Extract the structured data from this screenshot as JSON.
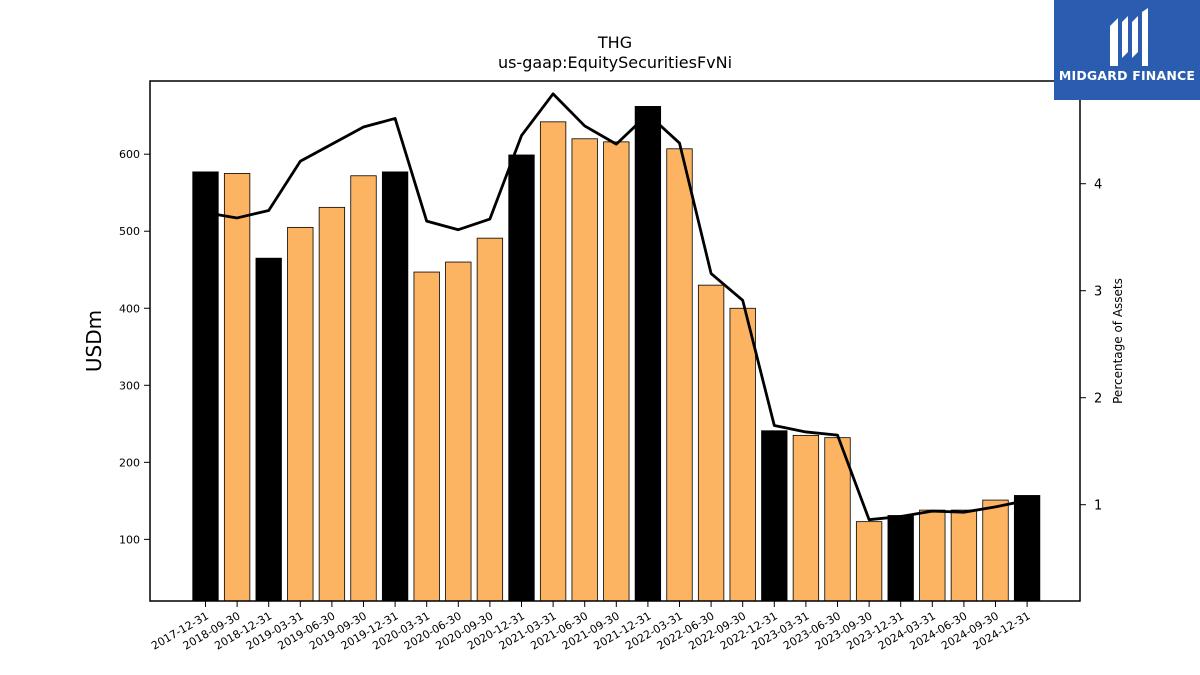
{
  "brand": {
    "name": "MIDGARD FINANCE",
    "bg_color": "#2a5db0"
  },
  "chart_data": {
    "type": "bar",
    "title": "THG",
    "subtitle": "us-gaap:EquitySecuritiesFvNi",
    "ylabel": "USDm",
    "y2label": "Percentage of Assets",
    "ylim": [
      20,
      695
    ],
    "y2lim": [
      0.1,
      4.96
    ],
    "yticks": [
      100,
      200,
      300,
      400,
      500,
      600
    ],
    "y2ticks": [
      1,
      2,
      3,
      4
    ],
    "grid": false,
    "colors": {
      "annual": "#000000",
      "quarterly": "#fdb462",
      "line": "#000000"
    },
    "categories": [
      "2017-12-31",
      "2018-09-30",
      "2018-12-31",
      "2019-03-31",
      "2019-06-30",
      "2019-09-30",
      "2019-12-31",
      "2020-03-31",
      "2020-06-30",
      "2020-09-30",
      "2020-12-31",
      "2021-03-31",
      "2021-06-30",
      "2021-09-30",
      "2021-12-31",
      "2022-03-31",
      "2022-06-30",
      "2022-09-30",
      "2022-12-31",
      "2023-03-31",
      "2023-06-30",
      "2023-09-30",
      "2023-12-31",
      "2024-03-31",
      "2024-06-30",
      "2024-09-30",
      "2024-12-31"
    ],
    "series": [
      {
        "type": "bar",
        "values": [
          577,
          575,
          465,
          505,
          531,
          572,
          577,
          447,
          460,
          491,
          599,
          642,
          620,
          616,
          662,
          607,
          430,
          400,
          241,
          235,
          232,
          123,
          131,
          138,
          138,
          151,
          157
        ],
        "annual": [
          true,
          false,
          true,
          false,
          false,
          false,
          true,
          false,
          false,
          false,
          true,
          false,
          false,
          false,
          true,
          false,
          false,
          false,
          true,
          false,
          false,
          false,
          true,
          false,
          false,
          false,
          true
        ]
      },
      {
        "type": "line",
        "axis": "secondary",
        "values": [
          3.73,
          3.68,
          3.75,
          4.21,
          4.37,
          4.53,
          4.61,
          3.65,
          3.57,
          3.67,
          4.45,
          4.84,
          4.54,
          4.37,
          4.65,
          4.38,
          3.16,
          2.91,
          1.74,
          1.68,
          1.65,
          0.86,
          0.89,
          0.94,
          0.93,
          0.98,
          1.04
        ]
      }
    ]
  }
}
